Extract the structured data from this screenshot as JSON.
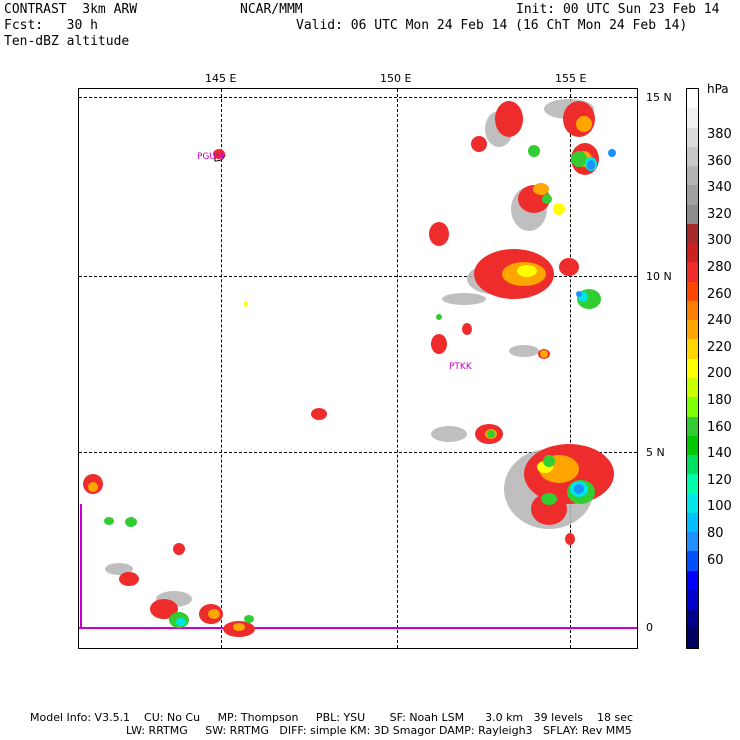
{
  "header": {
    "model": "CONTRAST  3km ARW",
    "forecast": "Fcst:   30 h",
    "field": "Ten-dBZ altitude",
    "center": "NCAR/MMM",
    "init": "Init: 00 UTC Sun 23 Feb 14",
    "valid": "Valid: 06 UTC Mon 24 Feb 14 (16 ChT Mon 24 Feb 14)"
  },
  "map": {
    "lon_labels": [
      "145 E",
      "150 E",
      "155 E"
    ],
    "lat_labels": [
      "15 N",
      "10 N",
      "5 N",
      "0"
    ],
    "stations": [
      "PGUM",
      "PTKK"
    ]
  },
  "legend": {
    "unit": "hPa",
    "labels": [
      "380",
      "360",
      "340",
      "320",
      "300",
      "280",
      "260",
      "240",
      "220",
      "200",
      "180",
      "160",
      "140",
      "120",
      "100",
      "80",
      "60"
    ],
    "colors": [
      "#ffffff",
      "#f0f0f0",
      "#dcdcdc",
      "#c8c8c8",
      "#b4b4b4",
      "#a0a0a0",
      "#8c8c8c",
      "#a52a2a",
      "#cd2020",
      "#ee2c2c",
      "#ff4500",
      "#ff7f00",
      "#ffa500",
      "#ffd700",
      "#ffff00",
      "#c8ff00",
      "#7fff00",
      "#32cd32",
      "#00c800",
      "#00e060",
      "#00ffaa",
      "#00e5e5",
      "#00bfff",
      "#1e90ff",
      "#0050ff",
      "#0000ff",
      "#0000cd",
      "#00008b",
      "#000060"
    ]
  },
  "footer": {
    "line1": "Model Info: V3.5.1    CU: No Cu     MP: Thompson     PBL: YSU       SF: Noah LSM      3.0 km   39 levels    18 sec",
    "line2": "LW: RRTMG     SW: RRTMG   DIFF: simple KM: 3D Smagor DAMP: Rayleigh3   SFLAY: Rev MM5"
  }
}
